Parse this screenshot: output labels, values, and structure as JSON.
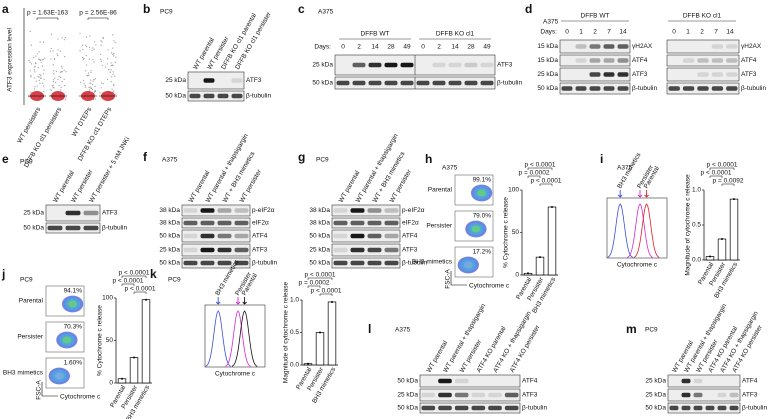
{
  "a": {
    "letter": "a",
    "y_label": "ATF3 expression level",
    "p_values": [
      "p = 1.63E-163",
      "p = 2.56E-86"
    ],
    "categories": [
      "WT persisters",
      "DFFB KO cl1 persisters",
      "WT DTEPs",
      "DFFB KO cl1 DTEPs"
    ]
  },
  "b": {
    "letter": "b",
    "cell_line": "PC9",
    "lanes": [
      "WT parental",
      "WT persister",
      "DFFB KO cl1 parental",
      "DFFB KO cl1 persister"
    ],
    "rows": [
      {
        "marker": "25 kDa",
        "label": "ATF3"
      },
      {
        "marker": "50 kDa",
        "label": "β-tubulin"
      }
    ]
  },
  "c": {
    "letter": "c",
    "cell_line": "A375",
    "groups": [
      "DFFB WT",
      "DFFB KO cl1"
    ],
    "days_label": "Days:",
    "days": [
      0,
      2,
      14,
      28,
      49,
      0,
      2,
      14,
      28,
      49
    ],
    "rows": [
      {
        "marker": "25 kDa",
        "label": "ATF3"
      },
      {
        "marker": "50 kDa",
        "label": "β-tubulin"
      }
    ]
  },
  "d": {
    "letter": "d",
    "cell_line": "A375",
    "groups": [
      "DFFB WT",
      "DFFB KO cl1"
    ],
    "days_label": "Days:",
    "days": [
      0,
      1,
      2,
      7,
      14,
      0,
      1,
      2,
      7,
      14
    ],
    "rows": [
      {
        "marker": "15 kDa",
        "label": "γH2AX"
      },
      {
        "marker": "15 kDa",
        "label": "ATF4"
      },
      {
        "marker": "25 kDa",
        "label": "ATF3"
      },
      {
        "marker": "50 kDa",
        "label": "β-tubulin"
      }
    ]
  },
  "e": {
    "letter": "e",
    "cell_line": "PC9",
    "lanes": [
      "WT parental",
      "WT persister",
      "WT persister + 5 nM JNKi"
    ],
    "rows": [
      {
        "marker": "25 kDa",
        "label": "ATF3"
      },
      {
        "marker": "50 kDa",
        "label": "β-tubulin"
      }
    ]
  },
  "f": {
    "letter": "f",
    "cell_line": "A375",
    "lanes": [
      "WT parental",
      "WT parental + thapsigargin",
      "WT + BH3 mimetics",
      "WT persister"
    ],
    "rows": [
      {
        "marker": "38 kDa",
        "label": "p-eIF2α"
      },
      {
        "marker": "38 kDa",
        "label": "eIF2α"
      },
      {
        "marker": "50 kDa",
        "label": "ATF4"
      },
      {
        "marker": "25 kDa",
        "label": "ATF3"
      },
      {
        "marker": "50 kDa",
        "label": "β-tubulin"
      }
    ]
  },
  "g": {
    "letter": "g",
    "cell_line": "PC9",
    "lanes": [
      "WT parental",
      "WT parental + thapsigargin",
      "WT + BH3 mimetics",
      "WT persister"
    ],
    "rows": [
      {
        "marker": "38 kDa",
        "label": "p-eIF2α"
      },
      {
        "marker": "38 kDa",
        "label": "eIF2α"
      },
      {
        "marker": "50 kDa",
        "label": "ATF4"
      },
      {
        "marker": "25 kDa",
        "label": "ATF3"
      },
      {
        "marker": "50 kDa",
        "label": "β-tubulin"
      }
    ]
  },
  "h": {
    "letter": "h",
    "cell_line": "A375",
    "flow": [
      {
        "label": "Parental",
        "percent": "99.1%"
      },
      {
        "label": "Persister",
        "percent": "79.0%"
      },
      {
        "label": "BH3 mimetics",
        "percent": "17.2%"
      }
    ],
    "y_axis": "FSC-A",
    "x_axis": "Cytochrome c",
    "chart": {
      "type": "bar",
      "y_label": "% Cytochrome c release",
      "categories": [
        "Parental",
        "Persister",
        "BH3 mimetics"
      ],
      "values": [
        2,
        21,
        80
      ],
      "ylim": [
        0,
        100
      ],
      "yticks": [
        0,
        50,
        100
      ],
      "p_values": [
        "p < 0.0001",
        "p = 0.0002",
        "p < 0.0001"
      ]
    }
  },
  "i": {
    "letter": "i",
    "cell_line": "A375",
    "peaks": [
      "BH3 mimetics",
      "Persister",
      "Parental"
    ],
    "x_axis": "Cytochrome c",
    "chart": {
      "type": "bar",
      "y_label": "Magnitude of cytochrome c release",
      "categories": [
        "Parental",
        "Persister",
        "BH3 mimetics"
      ],
      "values": [
        0.05,
        0.3,
        0.87
      ],
      "ylim": [
        0,
        1
      ],
      "yticks": [
        {
          "value": 0,
          "label": "0.0"
        },
        0.5,
        {
          "value": 1,
          "label": "1.0"
        }
      ],
      "p_values": [
        "p < 0.0001",
        "p < 0.0001",
        "p = 0.0092"
      ]
    }
  },
  "j": {
    "letter": "j",
    "cell_line": "PC9",
    "flow": [
      {
        "label": "Parental",
        "percent": "94.1%"
      },
      {
        "label": "Persister",
        "percent": "70.3%"
      },
      {
        "label": "BH3 mimetics",
        "percent": "1.60%"
      }
    ],
    "y_axis": "FSC-A",
    "x_axis": "Cytochrome c",
    "chart": {
      "type": "bar",
      "y_label": "% Cytochrome c release",
      "categories": [
        "Parental",
        "Persister",
        "BH3 mimetics"
      ],
      "values": [
        5,
        30,
        98
      ],
      "ylim": [
        0,
        100
      ],
      "yticks": [
        0,
        50,
        100
      ],
      "p_values": [
        "p < 0.0001",
        "p < 0.0001",
        "p < 0.0001"
      ]
    }
  },
  "k": {
    "letter": "k",
    "cell_line": "PC9",
    "peaks": [
      "BH3 mimetics",
      "Persister",
      "Parental"
    ],
    "x_axis": "Cytochrome c",
    "chart": {
      "type": "bar",
      "y_label": "Magnitude of cytochrome c release",
      "categories": [
        "Parental",
        "Persister",
        "BH3 mimetics"
      ],
      "values": [
        0.02,
        0.5,
        0.97
      ],
      "ylim": [
        0,
        1
      ],
      "yticks": [
        {
          "value": 0,
          "label": "0.0"
        },
        0.5,
        {
          "value": 1,
          "label": "1.0"
        }
      ],
      "p_values": [
        "p < 0.0001",
        "p = 0.0002",
        "p < 0.0001"
      ]
    }
  },
  "l": {
    "letter": "l",
    "cell_line": "A375",
    "lanes": [
      "WT parental",
      "WT parental + thapsigargin",
      "WT persister",
      "ATF4 KO parental",
      "ATF4 KO + thapsigargin",
      "ATF4 KO persister"
    ],
    "rows": [
      {
        "marker": "50 kDa",
        "label": "ATF4"
      },
      {
        "marker": "25 kDa",
        "label": "ATF3"
      },
      {
        "marker": "50 kDa",
        "label": "β-tubulin"
      }
    ]
  },
  "m": {
    "letter": "m",
    "cell_line": "PC9",
    "lanes": [
      "WT parental",
      "WT parental + thapsigargin",
      "WT persister",
      "ATF4 KO parental",
      "ATF4 KO + thapsigargin",
      "ATF4 KO persister"
    ],
    "rows": [
      {
        "marker": "25 kDa",
        "label": "ATF4"
      },
      {
        "marker": "25 kDa",
        "label": "ATF3"
      },
      {
        "marker": "50 kDa",
        "label": "β-tubulin"
      }
    ]
  }
}
